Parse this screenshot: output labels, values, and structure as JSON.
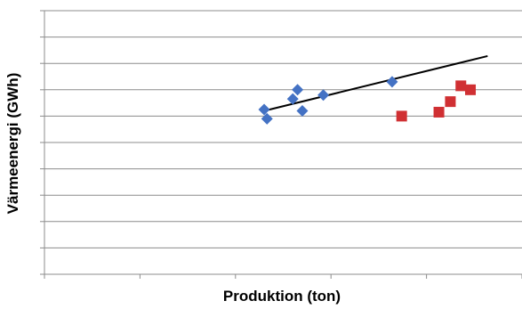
{
  "chart_data": {
    "type": "scatter",
    "title": "",
    "xlabel": "Produktion (ton)",
    "ylabel": "Värmeenergi (GWh)",
    "xlim": [
      0,
      5
    ],
    "ylim": [
      0,
      10
    ],
    "x_ticks": [
      0,
      1,
      2,
      3,
      4,
      5
    ],
    "y_ticks": [
      0,
      1,
      2,
      3,
      4,
      5,
      6,
      7,
      8,
      9,
      10
    ],
    "tick_labels_visible": false,
    "grid": "horizontal",
    "legend": "none",
    "series": [
      {
        "marker": "diamond",
        "color": "#4472C4",
        "points": [
          [
            2.3,
            6.25
          ],
          [
            2.33,
            5.9
          ],
          [
            2.6,
            6.65
          ],
          [
            2.65,
            7.0
          ],
          [
            2.7,
            6.2
          ],
          [
            2.92,
            6.8
          ],
          [
            3.64,
            7.3
          ]
        ]
      },
      {
        "marker": "square",
        "color": "#D03033",
        "points": [
          [
            3.74,
            6.0
          ],
          [
            4.13,
            6.15
          ],
          [
            4.25,
            6.55
          ],
          [
            4.36,
            7.15
          ],
          [
            4.46,
            7.0
          ]
        ]
      }
    ],
    "trendline": {
      "color": "#000000",
      "points": [
        [
          2.3,
          6.2
        ],
        [
          4.64,
          8.28
        ]
      ]
    }
  }
}
